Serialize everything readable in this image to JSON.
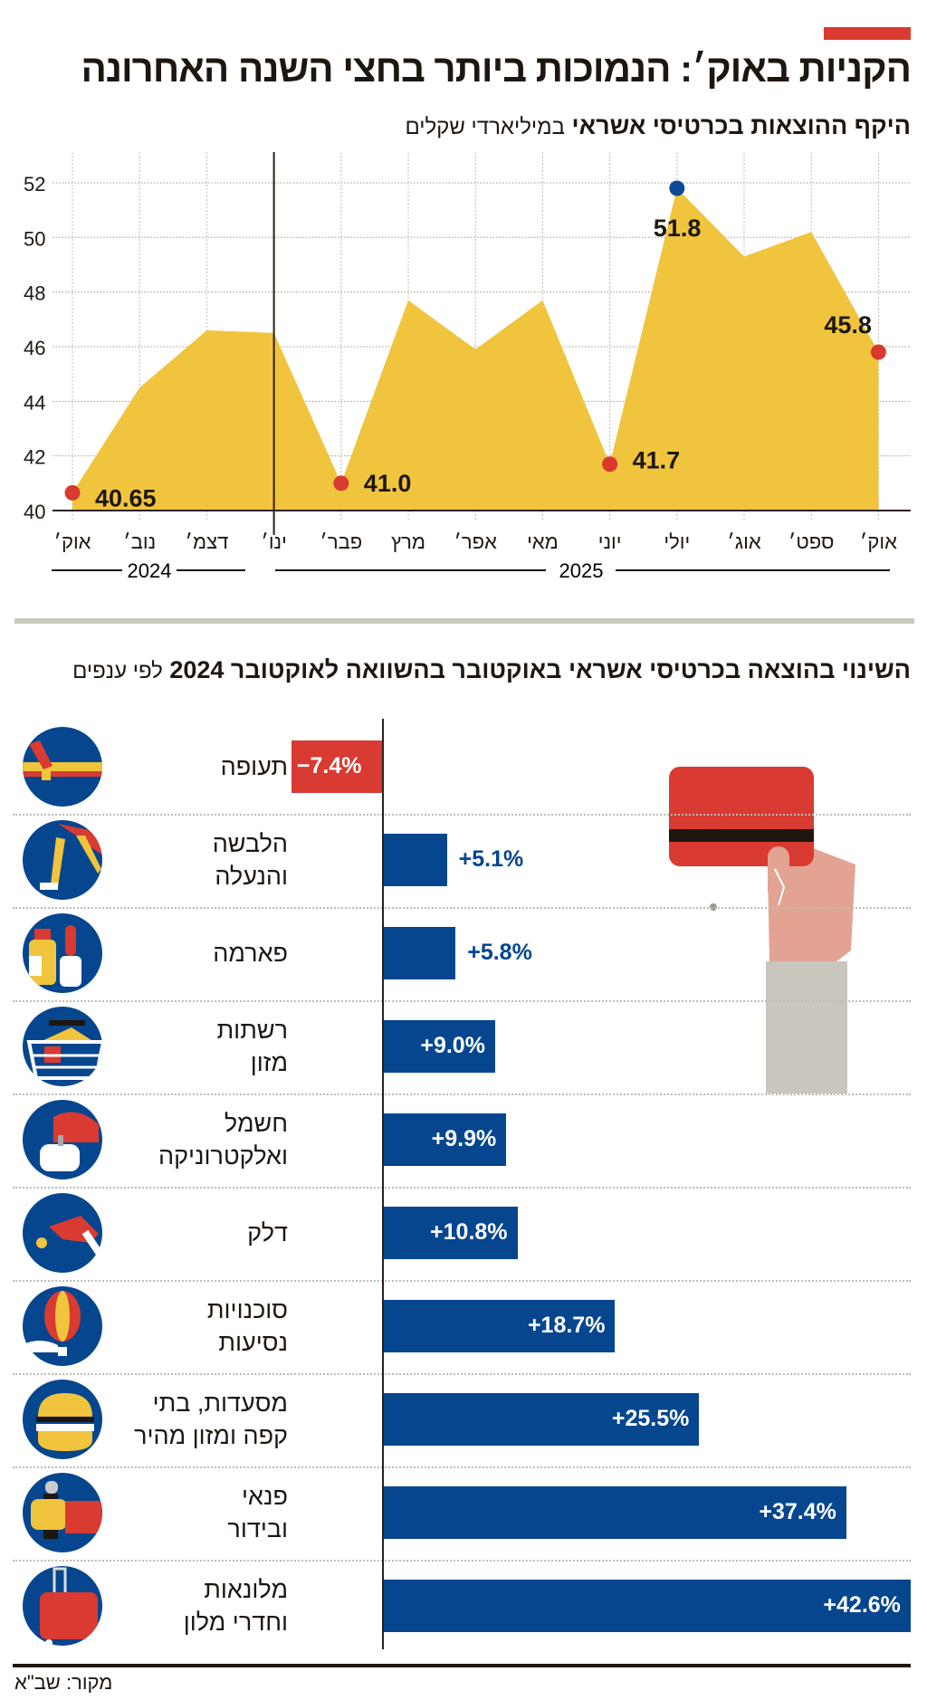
{
  "header": {
    "title": "הקניות באוק׳: הנמוכות ביותר בחצי השנה האחרונה",
    "accent_color": "#d93a31"
  },
  "chart_data": [
    {
      "type": "area",
      "title_bold": "היקף ההוצאות בכרטיסי אשראי",
      "title_light": "במיליארדי שקלים",
      "categories": [
        "אוק׳",
        "נוב׳",
        "דצמ׳",
        "ינו׳",
        "פבר׳",
        "מרץ",
        "אפר׳",
        "מאי",
        "יוני",
        "יולי",
        "אוג׳",
        "ספט׳",
        "אוק׳"
      ],
      "values": [
        40.65,
        44.5,
        46.6,
        46.5,
        41.0,
        47.7,
        45.9,
        47.7,
        41.7,
        51.8,
        49.3,
        50.2,
        45.8
      ],
      "years": [
        {
          "label": "2024"
        },
        {
          "label": "2025"
        }
      ],
      "ylim": [
        40,
        52
      ],
      "yticks": [
        "40",
        "42",
        "44",
        "46",
        "48",
        "50",
        "52"
      ],
      "grid": true,
      "fill_color": "#f0c43c",
      "annotations": [
        {
          "index": 0,
          "label": "40.65",
          "marker_color": "#d93a2f"
        },
        {
          "index": 4,
          "label": "41.0",
          "marker_color": "#d93a2f"
        },
        {
          "index": 8,
          "label": "41.7",
          "marker_color": "#d93a2f"
        },
        {
          "index": 9,
          "label": "51.8",
          "marker_color": "#0d4a96"
        },
        {
          "index": 12,
          "label": "45.8",
          "marker_color": "#d93a2f"
        }
      ]
    },
    {
      "type": "bar",
      "orientation": "horizontal",
      "title_bold": "השינוי בהוצאה בכרטיסי אשראי באוקטובר בהשוואה לאוקטובר 2024",
      "title_light": "לפי ענפים",
      "unit": "%",
      "positive_color": "#05468f",
      "negative_color": "#d93a31",
      "categories": [
        {
          "lines": [
            "תעופה"
          ],
          "value": -7.4,
          "label": "−7.4%",
          "icon": "airplane-icon"
        },
        {
          "lines": [
            "הלבשה",
            "והנעלה"
          ],
          "value": 5.1,
          "label": "+5.1%",
          "icon": "sneaker-icon"
        },
        {
          "lines": [
            "פארמה"
          ],
          "value": 5.8,
          "label": "+5.8%",
          "icon": "medicine-bottles-icon"
        },
        {
          "lines": [
            "רשתות",
            "מזון"
          ],
          "value": 9.0,
          "label": "+9.0%",
          "icon": "shopping-basket-icon"
        },
        {
          "lines": [
            "חשמל",
            "ואלקטרוניקה"
          ],
          "value": 9.9,
          "label": "+9.9%",
          "icon": "stand-mixer-icon"
        },
        {
          "lines": [
            "דלק"
          ],
          "value": 10.8,
          "label": "+10.8%",
          "icon": "fuel-nozzle-icon"
        },
        {
          "lines": [
            "סוכנויות",
            "נסיעות"
          ],
          "value": 18.7,
          "label": "+18.7%",
          "icon": "hot-air-balloon-icon"
        },
        {
          "lines": [
            "מסעדות, בתי",
            "קפה ומזון מהיר"
          ],
          "value": 25.5,
          "label": "+25.5%",
          "icon": "burger-icon"
        },
        {
          "lines": [
            "פנאי",
            "ובידור"
          ],
          "value": 37.4,
          "label": "+37.4%",
          "icon": "microphone-icon"
        },
        {
          "lines": [
            "מלונאות",
            "וחדרי מלון"
          ],
          "value": 42.6,
          "label": "+42.6%",
          "icon": "suitcase-icon"
        }
      ]
    }
  ],
  "footer": {
    "source": "מקור: שב\"א"
  }
}
